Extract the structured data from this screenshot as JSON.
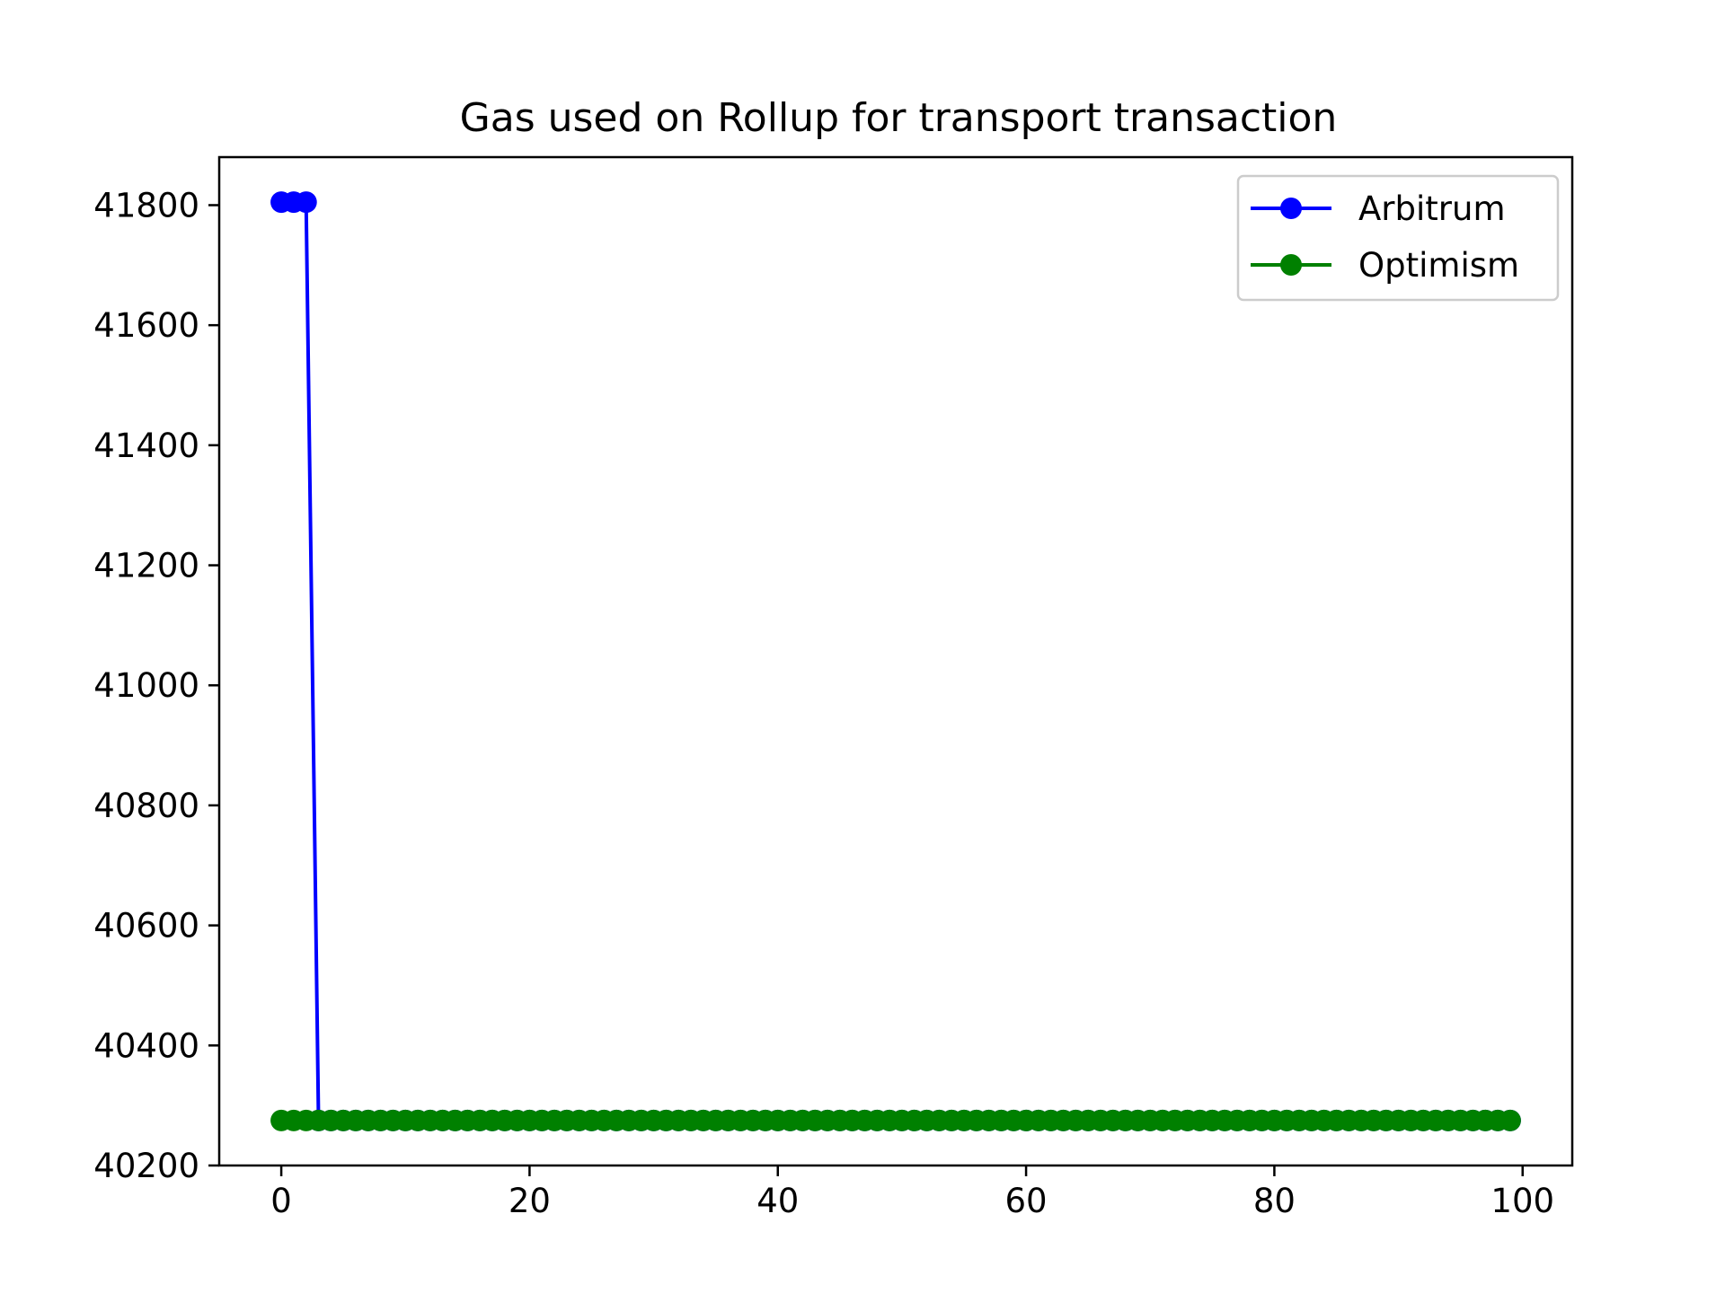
{
  "chart_data": {
    "type": "line",
    "title": "Gas used on Rollup for transport transaction",
    "xlabel": "",
    "ylabel": "",
    "xlim": [
      -5,
      104
    ],
    "ylim": [
      40200,
      41880
    ],
    "x_ticks": [
      0,
      20,
      40,
      60,
      80,
      100
    ],
    "y_ticks": [
      40200,
      40400,
      40600,
      40800,
      41000,
      41200,
      41400,
      41600,
      41800
    ],
    "grid": false,
    "legend_position": "top-right",
    "series": [
      {
        "name": "Arbitrum",
        "color": "#0000ff",
        "marker": "circle",
        "x_start": 0,
        "x_end": 99,
        "values_note": "points 0-2 at 41805, remaining at 40275",
        "high_value": 41805,
        "high_count": 3,
        "low_value": 40275
      },
      {
        "name": "Optimism",
        "color": "#008000",
        "marker": "circle",
        "x_start": 0,
        "x_end": 99,
        "constant_value": 40275
      }
    ]
  }
}
